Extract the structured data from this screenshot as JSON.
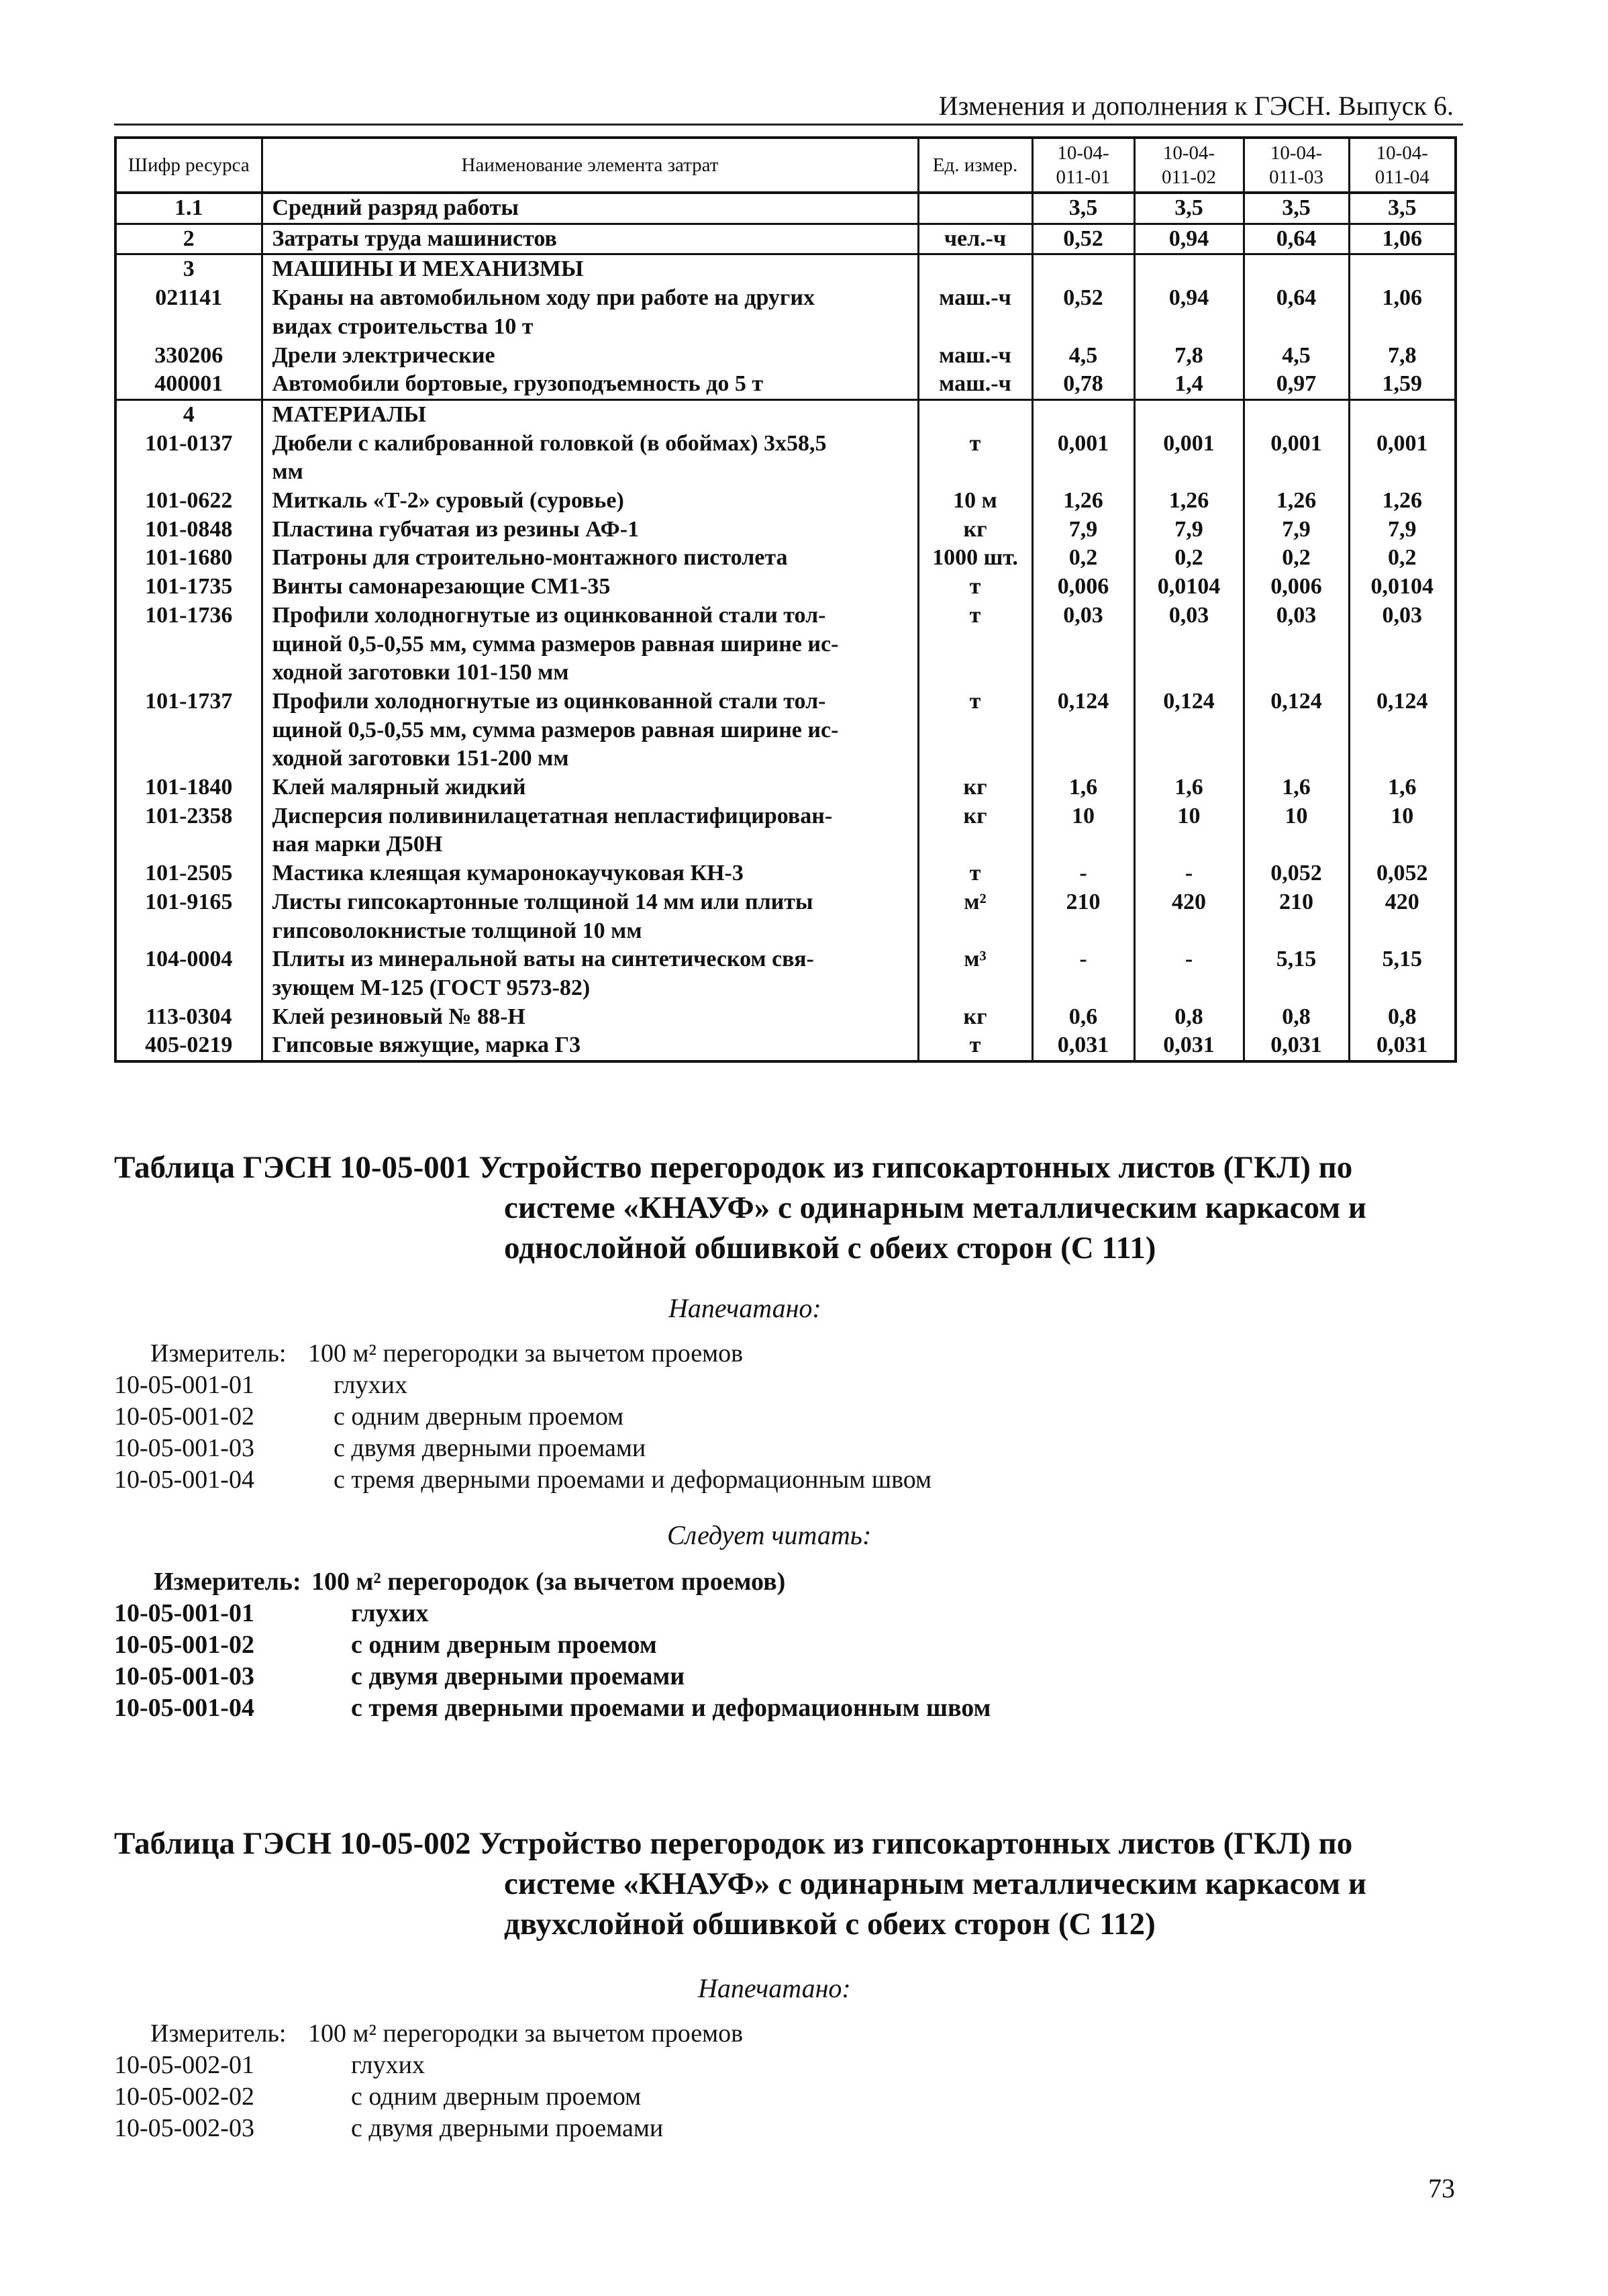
{
  "running_head": "Изменения и дополнения к ГЭСН. Выпуск 6.",
  "table": {
    "headers": [
      "Шифр ресурса",
      "Наименование элемента затрат",
      "Ед. измер.",
      [
        "10-04-",
        "011-01"
      ],
      [
        "10-04-",
        "011-02"
      ],
      [
        "10-04-",
        "011-03"
      ],
      [
        "10-04-",
        "011-04"
      ]
    ],
    "groups": [
      [
        {
          "code": "1.1",
          "name": [
            "Средний разряд работы"
          ],
          "unit": "",
          "v": [
            "3,5",
            "3,5",
            "3,5",
            "3,5"
          ]
        }
      ],
      [
        {
          "code": "2",
          "name": [
            "Затраты труда машинистов"
          ],
          "unit": "чел.-ч",
          "v": [
            "0,52",
            "0,94",
            "0,64",
            "1,06"
          ]
        }
      ],
      [
        {
          "code": "3",
          "name": [
            " МАШИНЫ И МЕХАНИЗМЫ"
          ],
          "unit": "",
          "v": [
            "",
            "",
            "",
            ""
          ]
        },
        {
          "code": "021141",
          "name": [
            "Краны на автомобильном ходу при работе на других",
            "видах строительства 10 т"
          ],
          "unit": "маш.-ч",
          "v": [
            "0,52",
            "0,94",
            "0,64",
            "1,06"
          ]
        },
        {
          "code": "330206",
          "name": [
            "Дрели электрические"
          ],
          "unit": "маш.-ч",
          "v": [
            "4,5",
            "7,8",
            "4,5",
            "7,8"
          ]
        },
        {
          "code": "400001",
          "name": [
            "Автомобили бортовые, грузоподъемность до 5 т"
          ],
          "unit": "маш.-ч",
          "v": [
            "0,78",
            "1,4",
            "0,97",
            "1,59"
          ]
        }
      ],
      [
        {
          "code": "4",
          "name": [
            " МАТЕРИАЛЫ"
          ],
          "unit": "",
          "v": [
            "",
            "",
            "",
            ""
          ]
        },
        {
          "code": "101-0137",
          "name": [
            "Дюбели с калиброванной головкой (в обоймах) 3х58,5",
            "мм"
          ],
          "unit": "т",
          "v": [
            "0,001",
            "0,001",
            "0,001",
            "0,001"
          ]
        },
        {
          "code": "101-0622",
          "name": [
            "Миткаль «Т-2» суровый (суровье)"
          ],
          "unit": "10 м",
          "v": [
            "1,26",
            "1,26",
            "1,26",
            "1,26"
          ]
        },
        {
          "code": "101-0848",
          "name": [
            "Пластина губчатая из резины АФ-1"
          ],
          "unit": "кг",
          "v": [
            "7,9",
            "7,9",
            "7,9",
            "7,9"
          ]
        },
        {
          "code": "101-1680",
          "name": [
            "Патроны для строительно-монтажного пистолета"
          ],
          "unit": "1000 шт.",
          "v": [
            "0,2",
            "0,2",
            "0,2",
            "0,2"
          ]
        },
        {
          "code": "101-1735",
          "name": [
            "Винты самонарезающие СМ1-35"
          ],
          "unit": "т",
          "v": [
            "0,006",
            "0,0104",
            "0,006",
            "0,0104"
          ]
        },
        {
          "code": "101-1736",
          "name": [
            "Профили холодногнутые из оцинкованной стали тол-",
            "щиной 0,5-0,55 мм, сумма размеров равная ширине ис-",
            "ходной заготовки 101-150 мм"
          ],
          "unit": "т",
          "v": [
            "0,03",
            "0,03",
            "0,03",
            "0,03"
          ]
        },
        {
          "code": "101-1737",
          "name": [
            "Профили холодногнутые из оцинкованной стали тол-",
            "щиной 0,5-0,55 мм, сумма размеров равная ширине ис-",
            "ходной заготовки 151-200 мм"
          ],
          "unit": "т",
          "v": [
            "0,124",
            "0,124",
            "0,124",
            "0,124"
          ]
        },
        {
          "code": "101-1840",
          "name": [
            "Клей малярный жидкий"
          ],
          "unit": "кг",
          "v": [
            "1,6",
            "1,6",
            "1,6",
            "1,6"
          ]
        },
        {
          "code": "101-2358",
          "name": [
            "Дисперсия поливинилацетатная непластифицирован-",
            "ная марки Д50Н"
          ],
          "unit": "кг",
          "v": [
            "10",
            "10",
            "10",
            "10"
          ]
        },
        {
          "code": "101-2505",
          "name": [
            "Мастика клеящая кумаронокаучуковая КН-3"
          ],
          "unit": "т",
          "v": [
            "-",
            "-",
            "0,052",
            "0,052"
          ]
        },
        {
          "code": "101-9165",
          "name": [
            "Листы гипсокартонные толщиной 14 мм или плиты",
            "гипсоволокнистые толщиной 10 мм"
          ],
          "unit": "м²",
          "v": [
            "210",
            "420",
            "210",
            "420"
          ]
        },
        {
          "code": "104-0004",
          "name": [
            "Плиты из минеральной ваты на синтетическом свя-",
            "зующем М-125 (ГОСТ 9573-82)"
          ],
          "unit": "м³",
          "v": [
            "-",
            "-",
            "5,15",
            "5,15"
          ]
        },
        {
          "code": "113-0304",
          "name": [
            "Клей резиновый № 88-Н"
          ],
          "unit": "кг",
          "v": [
            "0,6",
            "0,8",
            "0,8",
            "0,8"
          ]
        },
        {
          "code": "405-0219",
          "name": [
            "Гипсовые вяжущие, марка Г3"
          ],
          "unit": "т",
          "v": [
            "0,031",
            "0,031",
            "0,031",
            "0,031"
          ]
        }
      ]
    ]
  },
  "section1": {
    "title_l1": "Таблица ГЭСН 10-05-001 Устройство перегородок из гипсокартонных листов (ГКЛ) по",
    "title_l2": "системе «КНАУФ» с одинарным металлическим каркасом и",
    "title_l3": "однослойной обшивкой с обеих сторон (С 111)",
    "printed_label": "Напечатано:",
    "printed": {
      "meter_label": "Измеритель:",
      "meter": "100 м² перегородки за вычетом проемов",
      "items": [
        [
          "10-05-001-01",
          "глухих"
        ],
        [
          "10-05-001-02",
          "с одним дверным проемом"
        ],
        [
          "10-05-001-03",
          "с двумя дверными проемами"
        ],
        [
          "10-05-001-04",
          "с тремя дверными проемами и деформационным швом"
        ]
      ]
    },
    "should_label": "Следует читать:",
    "should": {
      "meter_label": "Измеритель:",
      "meter": "100 м² перегородок (за вычетом проемов)",
      "items": [
        [
          "10-05-001-01",
          "глухих"
        ],
        [
          "10-05-001-02",
          "с одним дверным проемом"
        ],
        [
          "10-05-001-03",
          "с двумя дверными проемами"
        ],
        [
          "10-05-001-04",
          "с тремя дверными проемами и деформационным швом"
        ]
      ]
    }
  },
  "section2": {
    "title_l1": "Таблица ГЭСН 10-05-002 Устройство перегородок из гипсокартонных листов (ГКЛ) по",
    "title_l2": "системе «КНАУФ» с одинарным металлическим каркасом и",
    "title_l3": "двухслойной обшивкой с обеих сторон (С 112)",
    "printed_label": "Напечатано:",
    "printed": {
      "meter_label": "Измеритель:",
      "meter": "100 м² перегородки за вычетом проемов",
      "items": [
        [
          "10-05-002-01",
          "глухих"
        ],
        [
          "10-05-002-02",
          "с одним дверным проемом"
        ],
        [
          "10-05-002-03",
          "с двумя дверными проемами"
        ]
      ]
    }
  },
  "page_number": "73"
}
